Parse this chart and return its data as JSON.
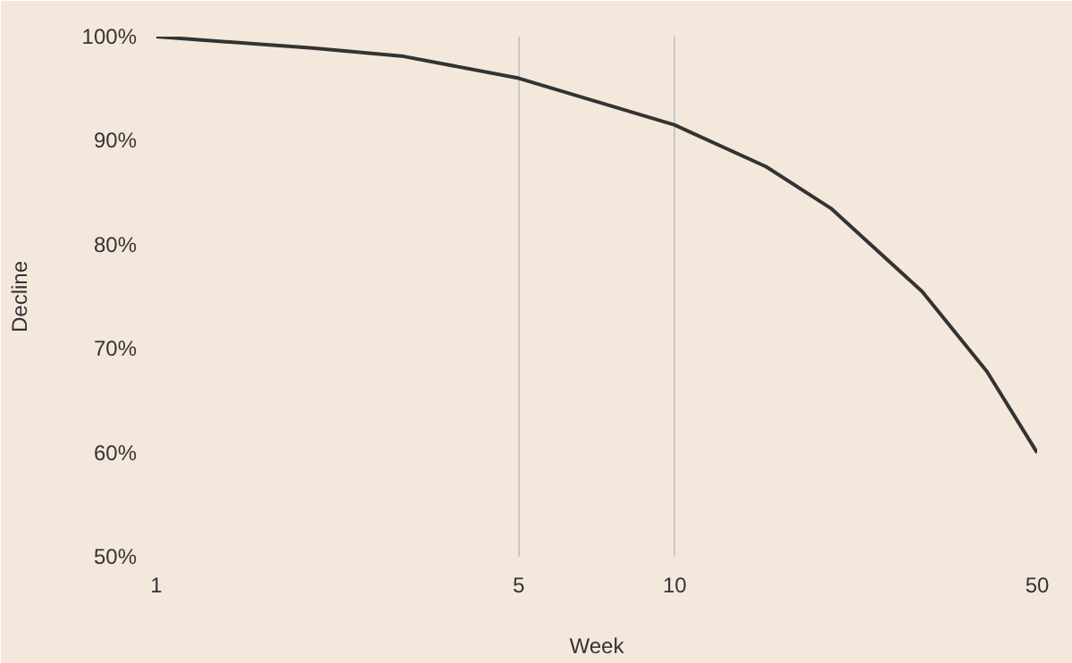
{
  "chart_data": {
    "type": "line",
    "xlabel": "Week",
    "ylabel": "Decline",
    "log": "x",
    "grid": "x",
    "xlim": [
      1,
      50
    ],
    "xticks": [
      1,
      5,
      10,
      50
    ],
    "ylim": [
      50,
      100
    ],
    "yticks": [
      {
        "value": 50,
        "label": "50%"
      },
      {
        "value": 60,
        "label": "60%"
      },
      {
        "value": 70,
        "label": "70%"
      },
      {
        "value": 80,
        "label": "80%"
      },
      {
        "value": 90,
        "label": "90%"
      },
      {
        "value": 100,
        "label": "100%"
      }
    ],
    "series": [
      {
        "color": "#333333",
        "x": [
          1,
          2,
          3,
          5,
          10,
          15,
          20,
          30,
          40,
          50
        ],
        "values": [
          100,
          98.9,
          98.1,
          96,
          91.5,
          87.5,
          83.5,
          75.5,
          67.8,
          60
        ]
      }
    ]
  }
}
